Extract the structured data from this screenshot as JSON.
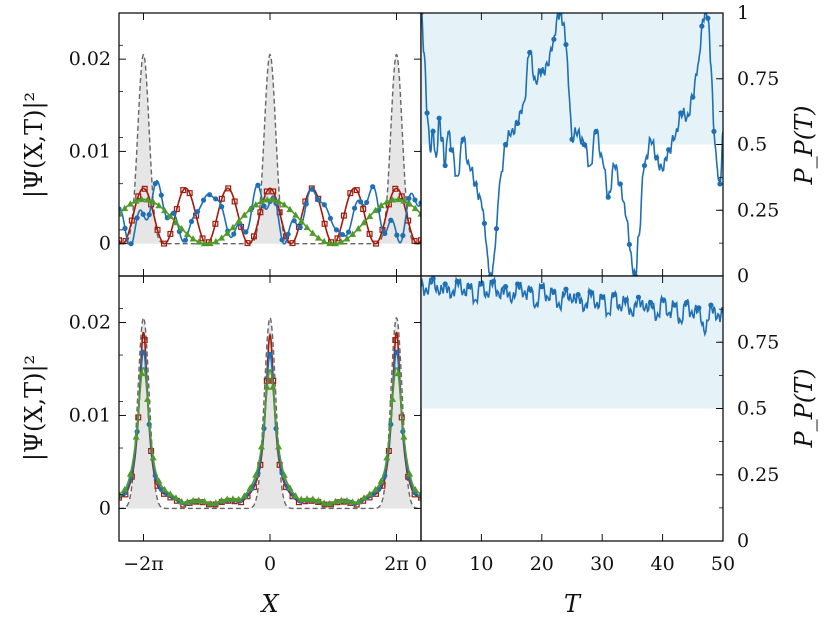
{
  "chart_data": [
    {
      "panel": "top-left",
      "type": "line",
      "ylabel": "|Ψ(X,T)|²",
      "xlim": [
        -7.5,
        7.5
      ],
      "ylim": [
        -0.0035,
        0.025
      ],
      "yticks": [
        0,
        0.01,
        0.02
      ],
      "ytick_labels": [
        "0",
        "0.01",
        "0.02"
      ],
      "xticks": [
        -6.2832,
        0,
        6.2832
      ],
      "xtick_labels": [
        "",
        "",
        ""
      ],
      "series": [
        {
          "kind": "reference-gaussian-peaks",
          "centers": [
            -6.2832,
            0,
            6.2832
          ],
          "amplitude": 0.0205,
          "width": 0.28,
          "color": "#666666",
          "style": "dashed",
          "fill": "#e6e6e6"
        },
        {
          "kind": "oscillation",
          "color": "#a11a0c",
          "marker": "square",
          "base": 0.003,
          "amp": 0.003,
          "freq": 3.0,
          "phase": 0.0
        },
        {
          "kind": "oscillation",
          "color": "#1f6fb4",
          "marker": "circle",
          "base": 0.0032,
          "amp": 0.0022,
          "freq": 2.4,
          "phase": 0.9,
          "mod_amp": 0.0015,
          "mod_freq": 7.0
        },
        {
          "kind": "oscillation",
          "color": "#4f9a2a",
          "marker": "triangle",
          "base": 0.0024,
          "amp": 0.0024,
          "freq": 1.0,
          "phase": 0.0
        }
      ]
    },
    {
      "panel": "bottom-left",
      "type": "line",
      "xlabel": "X",
      "ylabel": "|Ψ(X,T)|²",
      "xlim": [
        -7.5,
        7.5
      ],
      "ylim": [
        -0.0035,
        0.025
      ],
      "yticks": [
        0,
        0.01,
        0.02
      ],
      "ytick_labels": [
        "0",
        "0.01",
        "0.02"
      ],
      "xticks": [
        -6.2832,
        0,
        6.2832
      ],
      "xtick_labels": [
        "−2π",
        "0",
        "2π"
      ],
      "series": [
        {
          "kind": "reference-gaussian-peaks",
          "centers": [
            -6.2832,
            0,
            6.2832
          ],
          "amplitude": 0.0205,
          "width": 0.28,
          "color": "#666666",
          "style": "dashed",
          "fill": "#e6e6e6"
        },
        {
          "kind": "lorentzian-peaks",
          "centers": [
            -6.2832,
            0,
            6.2832
          ],
          "amplitude": 0.0186,
          "gamma": 0.26,
          "color": "#a11a0c",
          "marker": "square"
        },
        {
          "kind": "lorentzian-peaks",
          "centers": [
            -6.2832,
            0,
            6.2832
          ],
          "amplitude": 0.0165,
          "gamma": 0.3,
          "color": "#1f6fb4",
          "marker": "circle"
        },
        {
          "kind": "lorentzian-peaks",
          "centers": [
            -6.2832,
            0,
            6.2832
          ],
          "amplitude": 0.0148,
          "gamma": 0.36,
          "color": "#4f9a2a",
          "marker": "triangle"
        }
      ]
    },
    {
      "panel": "top-right",
      "type": "line",
      "ylabel": "P_P(T)",
      "xlim": [
        0,
        50
      ],
      "ylim": [
        0,
        1
      ],
      "yticks": [
        0,
        0.25,
        0.5,
        0.75,
        1
      ],
      "ytick_labels": [
        "0",
        "0.25",
        "0.5",
        "0.75",
        "1"
      ],
      "xticks": [
        0,
        10,
        20,
        30,
        40,
        50
      ],
      "xtick_labels": [
        "",
        "",
        "",
        "",
        "",
        ""
      ],
      "shaded_band": [
        0.5,
        1.0
      ],
      "series": [
        {
          "name": "",
          "color": "#1f6fb4",
          "marker": "circle",
          "x": [
            0,
            0.5,
            1,
            1.5,
            2,
            2.5,
            3,
            3.5,
            4,
            4.5,
            5,
            6,
            7,
            8,
            9,
            10,
            10.5,
            11,
            11.5,
            12,
            12.5,
            13,
            14,
            15,
            16,
            17,
            18,
            19,
            20,
            21,
            22,
            22.5,
            23,
            23.5,
            24,
            24.5,
            25,
            26,
            27,
            28,
            29,
            30,
            31,
            32,
            33,
            34,
            34.5,
            35,
            35.5,
            36,
            37,
            38,
            39,
            40,
            41,
            42,
            43,
            44,
            45,
            46,
            46.5,
            47,
            47.5,
            48,
            48.5,
            49,
            49.5,
            50
          ],
          "y": [
            1.0,
            0.85,
            0.62,
            0.48,
            0.55,
            0.45,
            0.6,
            0.52,
            0.42,
            0.55,
            0.48,
            0.38,
            0.52,
            0.42,
            0.35,
            0.28,
            0.2,
            0.08,
            0.0,
            0.05,
            0.18,
            0.35,
            0.5,
            0.55,
            0.58,
            0.66,
            0.85,
            0.74,
            0.78,
            0.8,
            0.9,
            0.98,
            1.0,
            0.96,
            0.88,
            0.7,
            0.52,
            0.55,
            0.5,
            0.42,
            0.55,
            0.45,
            0.3,
            0.42,
            0.35,
            0.22,
            0.12,
            0.03,
            0.0,
            0.15,
            0.42,
            0.52,
            0.45,
            0.4,
            0.48,
            0.52,
            0.62,
            0.6,
            0.68,
            0.82,
            0.95,
            1.0,
            0.98,
            0.8,
            0.55,
            0.42,
            0.35,
            0.55
          ]
        }
      ]
    },
    {
      "panel": "bottom-right",
      "type": "line",
      "xlabel": "T",
      "ylabel": "P_P(T)",
      "xlim": [
        0,
        50
      ],
      "ylim": [
        0,
        1
      ],
      "yticks": [
        0,
        0.25,
        0.5,
        0.75
      ],
      "ytick_labels": [
        "0",
        "0.25",
        "0.5",
        "0.75"
      ],
      "xticks": [
        0,
        10,
        20,
        30,
        40,
        50
      ],
      "xtick_labels": [
        "0",
        "10",
        "20",
        "30",
        "40",
        "50"
      ],
      "shaded_band": [
        0.5,
        1.0
      ],
      "series": [
        {
          "name": "",
          "color": "#1f6fb4",
          "marker": "circle",
          "x": [
            0,
            1,
            2,
            3,
            4,
            5,
            6,
            7,
            8,
            9,
            10,
            11,
            12,
            13,
            14,
            15,
            16,
            17,
            18,
            19,
            20,
            21,
            22,
            23,
            24,
            25,
            26,
            27,
            28,
            29,
            30,
            31,
            32,
            33,
            34,
            35,
            36,
            37,
            38,
            39,
            40,
            41,
            42,
            43,
            44,
            45,
            46,
            47,
            48,
            49,
            50
          ],
          "y": [
            0.97,
            0.94,
            0.99,
            0.93,
            0.97,
            0.92,
            0.98,
            0.94,
            0.96,
            0.91,
            0.97,
            0.93,
            0.98,
            0.92,
            0.96,
            0.9,
            0.97,
            0.93,
            0.95,
            0.89,
            0.96,
            0.92,
            0.94,
            0.88,
            0.95,
            0.9,
            0.93,
            0.87,
            0.94,
            0.89,
            0.92,
            0.86,
            0.93,
            0.88,
            0.91,
            0.85,
            0.92,
            0.87,
            0.9,
            0.84,
            0.91,
            0.86,
            0.89,
            0.83,
            0.9,
            0.85,
            0.88,
            0.78,
            0.89,
            0.84,
            0.87
          ]
        }
      ]
    }
  ]
}
